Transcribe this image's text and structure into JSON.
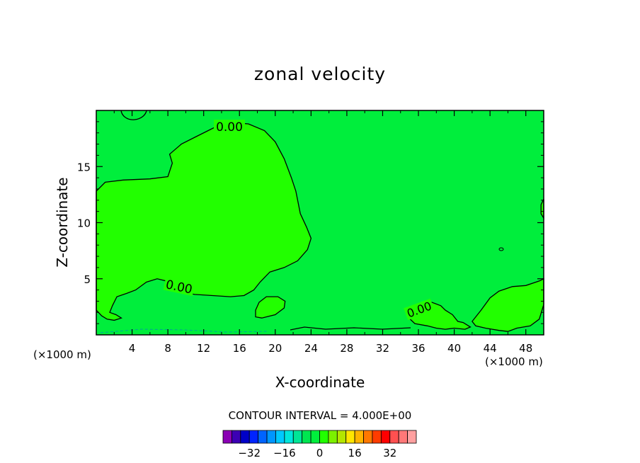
{
  "chart_data": {
    "type": "heatmap",
    "title": "zonal velocity",
    "xlabel": "X-coordinate",
    "ylabel": "Z-coordinate",
    "x_unit_label": "(×1000 m)",
    "x_unit_label_right": "(×1000 m)",
    "xlim": [
      0,
      50
    ],
    "ylim": [
      0,
      20
    ],
    "x_ticks": [
      4,
      8,
      12,
      16,
      20,
      24,
      28,
      32,
      36,
      40,
      44,
      48
    ],
    "y_ticks": [
      5,
      10,
      15
    ],
    "contour_label": "0.00",
    "contour_interval_text": "CONTOUR INTERVAL = 4.000E+00",
    "background_color": "#00ee3c",
    "region_color": "#22ff00",
    "regions": [
      {
        "points": [
          [
            0,
            12.8
          ],
          [
            1,
            13.6
          ],
          [
            3,
            13.8
          ],
          [
            6,
            13.9
          ],
          [
            8,
            14.1
          ],
          [
            8.5,
            15.3
          ],
          [
            8.2,
            16.1
          ],
          [
            9.5,
            17
          ],
          [
            11,
            17.6
          ],
          [
            12.5,
            18.2
          ],
          [
            13.5,
            18.6
          ],
          [
            15.2,
            18.9
          ],
          [
            17,
            18.8
          ],
          [
            18.8,
            18.2
          ],
          [
            20,
            17.2
          ],
          [
            21,
            15.7
          ],
          [
            21.8,
            14
          ],
          [
            22.3,
            12.8
          ],
          [
            22.8,
            10.8
          ],
          [
            23.5,
            9.6
          ],
          [
            24,
            8.6
          ],
          [
            23.6,
            7.6
          ],
          [
            22.5,
            6.6
          ],
          [
            21,
            6
          ],
          [
            19.4,
            5.6
          ],
          [
            18.3,
            4.7
          ],
          [
            17.6,
            4
          ],
          [
            16.5,
            3.5
          ],
          [
            15,
            3.4
          ],
          [
            13,
            3.5
          ],
          [
            11,
            3.6
          ],
          [
            9.6,
            3.8
          ],
          [
            8.6,
            4.2
          ],
          [
            7.8,
            4.8
          ],
          [
            6.8,
            5
          ],
          [
            5.6,
            4.7
          ],
          [
            4.4,
            4
          ],
          [
            3.4,
            3.7
          ],
          [
            2.3,
            3.4
          ],
          [
            1.8,
            2.6
          ],
          [
            1.5,
            2
          ],
          [
            2.2,
            1.8
          ],
          [
            2.8,
            1.5
          ],
          [
            2,
            1.3
          ],
          [
            1.2,
            1.4
          ],
          [
            0.6,
            1.7
          ],
          [
            0,
            2.2
          ]
        ]
      },
      {
        "points": [
          [
            17.8,
            2.2
          ],
          [
            17.8,
            1.6
          ],
          [
            18.5,
            1.5
          ],
          [
            20,
            1.8
          ],
          [
            21,
            2.4
          ],
          [
            21.1,
            3
          ],
          [
            20.3,
            3.4
          ],
          [
            19,
            3.4
          ],
          [
            18.2,
            2.9
          ]
        ]
      },
      {
        "points": [
          [
            34.8,
            1.6
          ],
          [
            35.5,
            2
          ],
          [
            36.2,
            2.3
          ],
          [
            36.5,
            2.8
          ],
          [
            37.5,
            2.9
          ],
          [
            38.5,
            2.6
          ],
          [
            39,
            2.2
          ],
          [
            39.8,
            1.8
          ],
          [
            40.4,
            1.2
          ],
          [
            41,
            1.1
          ],
          [
            41.8,
            0.7
          ],
          [
            41.2,
            0.5
          ],
          [
            40,
            0.6
          ],
          [
            39,
            0.5
          ],
          [
            38,
            0.6
          ],
          [
            37,
            0.8
          ],
          [
            35.6,
            1
          ]
        ]
      },
      {
        "points": [
          [
            42,
            1.2
          ],
          [
            43,
            2.2
          ],
          [
            44,
            3.3
          ],
          [
            45,
            3.9
          ],
          [
            46.5,
            4.3
          ],
          [
            48,
            4.4
          ],
          [
            49.5,
            4.8
          ],
          [
            50,
            5
          ],
          [
            50,
            2.7
          ],
          [
            49.5,
            1.4
          ],
          [
            48.5,
            0.8
          ],
          [
            47,
            0.6
          ],
          [
            46,
            0.3
          ],
          [
            45,
            0.4
          ],
          [
            43.5,
            0.6
          ],
          [
            42.4,
            0.8
          ]
        ]
      },
      {
        "points": [
          [
            50,
            12.1
          ],
          [
            49.7,
            11.6
          ],
          [
            49.7,
            10.8
          ],
          [
            50,
            10.4
          ]
        ]
      }
    ],
    "colorbar": {
      "colors": [
        "#8a00b4",
        "#3c00b4",
        "#0000c8",
        "#0024ff",
        "#0064ff",
        "#0096ff",
        "#00c8ff",
        "#00e6dc",
        "#00e696",
        "#00e650",
        "#00ee3c",
        "#22ff00",
        "#7cf000",
        "#b4e600",
        "#ffe600",
        "#ffb400",
        "#ff7800",
        "#ff3c00",
        "#ff0000",
        "#ff5050",
        "#ff7878",
        "#ffa0a0"
      ],
      "tick_labels": [
        "−32",
        "−16",
        "0",
        "16",
        "32"
      ],
      "tick_values": [
        -32,
        -16,
        0,
        16,
        32
      ],
      "vmin": -44,
      "vmax": 44
    }
  }
}
